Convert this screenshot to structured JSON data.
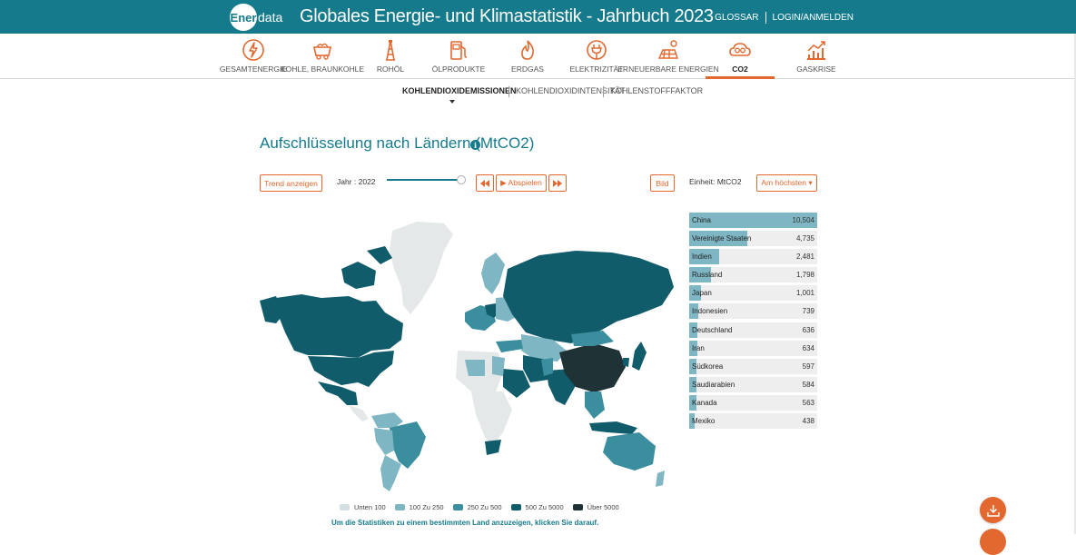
{
  "header": {
    "logo_mark": "Ener",
    "logo_text": "data",
    "title": "Globales Energie- und Klimastatistik - Jahrbuch 2023",
    "glossary": "GLOSSAR",
    "login": "LOGIN/ANMELDEN"
  },
  "categories": [
    {
      "label": "GESAMTENERGIE",
      "icon": "lightning-icon"
    },
    {
      "label": "KOHLE, BRAUNKOHLE",
      "icon": "coal-cart-icon"
    },
    {
      "label": "ROHÖL",
      "icon": "oil-derrick-icon"
    },
    {
      "label": "ÖLPRODUKTE",
      "icon": "fuel-pump-icon"
    },
    {
      "label": "ERDGAS",
      "icon": "flame-icon"
    },
    {
      "label": "ELEKTRIZITÄT",
      "icon": "plug-icon"
    },
    {
      "label": "ERNEUERBARE ENERGIEN",
      "icon": "solar-panel-icon"
    },
    {
      "label": "CO2",
      "icon": "co2-cloud-icon",
      "active": true
    },
    {
      "label": "GASKRISE",
      "icon": "trend-chart-icon"
    }
  ],
  "subnav": [
    {
      "label": "KOHLENDIOXIDEMISSIONEN",
      "active": true
    },
    {
      "label": "KOHLENDIOXIDINTENSITÄT"
    },
    {
      "label": "KOHLENSTOFFFAKTOR"
    }
  ],
  "section": {
    "title": "Aufschlüsselung nach Ländern (MtCO2)",
    "info_icon": "info-icon"
  },
  "controls": {
    "trend_button": "Trend anzeigen",
    "year_label": "Jahr : 2022",
    "rewind_icon": "rewind-icon",
    "play_label": "▶ Abspielen",
    "forward_icon": "fast-forward-icon",
    "image_button": "Bild",
    "unit_label": "Einheit: MtCO2",
    "sort_label": "Am höchsten ▾"
  },
  "ranking": [
    {
      "name": "China",
      "value": "10,504",
      "num": 10504
    },
    {
      "name": "Vereinigte Staaten",
      "value": "4,735",
      "num": 4735
    },
    {
      "name": "Indien",
      "value": "2,481",
      "num": 2481
    },
    {
      "name": "Russland",
      "value": "1,798",
      "num": 1798
    },
    {
      "name": "Japan",
      "value": "1,001",
      "num": 1001
    },
    {
      "name": "Indonesien",
      "value": "739",
      "num": 739
    },
    {
      "name": "Deutschland",
      "value": "636",
      "num": 636
    },
    {
      "name": "Iran",
      "value": "634",
      "num": 634
    },
    {
      "name": "Südkorea",
      "value": "597",
      "num": 597
    },
    {
      "name": "Saudiarabien",
      "value": "584",
      "num": 584
    },
    {
      "name": "Kanada",
      "value": "563",
      "num": 563
    },
    {
      "name": "Mexiko",
      "value": "438",
      "num": 438
    }
  ],
  "legend": [
    {
      "label": "Unten 100",
      "color": "#d3dfe3"
    },
    {
      "label": "100 Zu 250",
      "color": "#7fb6c4"
    },
    {
      "label": "250 Zu 500",
      "color": "#3a8e9d"
    },
    {
      "label": "500 Zu 5000",
      "color": "#105c6b"
    },
    {
      "label": "Über 5000",
      "color": "#1f3236"
    }
  ],
  "hint": "Um die Statistiken zu einem bestimmten Land anzuzeigen, klicken Sie darauf.",
  "download_icon": "download-icon",
  "colors": {
    "brand": "#157a8c",
    "accent": "#e2682f"
  }
}
